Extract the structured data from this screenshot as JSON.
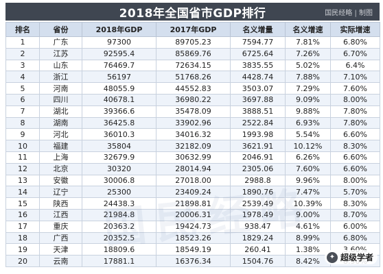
{
  "title": "2018年全国省市GDP排行",
  "brand": "国民经略 | 制图",
  "watermark": "国民经略",
  "logo_text": "超级学者",
  "columns": [
    "排名",
    "省份",
    "2018年GDP",
    "2017年GDP",
    "名义增量",
    "名义增速",
    "实际增速"
  ],
  "rows": [
    [
      "1",
      "广东",
      "97300",
      "89705.23",
      "7594.77",
      "7.81%",
      "6.80%"
    ],
    [
      "2",
      "江苏",
      "92595.4",
      "85869.76",
      "6725.64",
      "7.26%",
      "6.70%"
    ],
    [
      "3",
      "山东",
      "76469.7",
      "72634.15",
      "3835.55",
      "5.02%",
      "6.4%"
    ],
    [
      "4",
      "浙江",
      "56197",
      "51768.26",
      "4428.74",
      "7.88%",
      "7.10%"
    ],
    [
      "5",
      "河南",
      "48055.9",
      "44552.83",
      "3503.07",
      "7.29%",
      "7.60%"
    ],
    [
      "6",
      "四川",
      "40678.1",
      "36980.22",
      "3697.88",
      "9.09%",
      "8.00%"
    ],
    [
      "7",
      "湖北",
      "39366.6",
      "35478.09",
      "3888.51",
      "9.88%",
      "7.80%"
    ],
    [
      "8",
      "湖南",
      "36425.8",
      "33902.96",
      "2522.84",
      "6.93%",
      "7.80%"
    ],
    [
      "9",
      "河北",
      "36010.3",
      "34016.32",
      "1993.98",
      "5.54%",
      "6.60%"
    ],
    [
      "10",
      "福建",
      "35804",
      "32182.09",
      "3621.91",
      "10.12%",
      "8.30%"
    ],
    [
      "11",
      "上海",
      "32679.9",
      "30632.99",
      "2046.91",
      "6.26%",
      "6.60%"
    ],
    [
      "12",
      "北京",
      "30320",
      "28014.94",
      "2305.06",
      "7.60%",
      "6.60%"
    ],
    [
      "13",
      "安徽",
      "30006.8",
      "27018.00",
      "2988.8",
      "9.96%",
      "8.00%"
    ],
    [
      "14",
      "辽宁",
      "25300",
      "23409.24",
      "1890.76",
      "7.47%",
      "5.70%"
    ],
    [
      "15",
      "陕西",
      "24438.3",
      "21898.81",
      "2539.49",
      "10.39%",
      "8.30%"
    ],
    [
      "16",
      "江西",
      "21984.8",
      "20006.31",
      "1978.49",
      "9.00%",
      "8.70%"
    ],
    [
      "17",
      "重庆",
      "20363.2",
      "19424.73",
      "938.47",
      "4.61%",
      "6.00%"
    ],
    [
      "18",
      "广西",
      "20352.5",
      "18523.26",
      "1829.24",
      "8.99%",
      "6.80%"
    ],
    [
      "19",
      "天津",
      "18809.6",
      "18549.19",
      "260.41",
      "1.38%",
      "3.60%"
    ],
    [
      "20",
      "云南",
      "17881.1",
      "16376.34",
      "1504.76",
      "8.42%",
      "8.90%"
    ]
  ]
}
